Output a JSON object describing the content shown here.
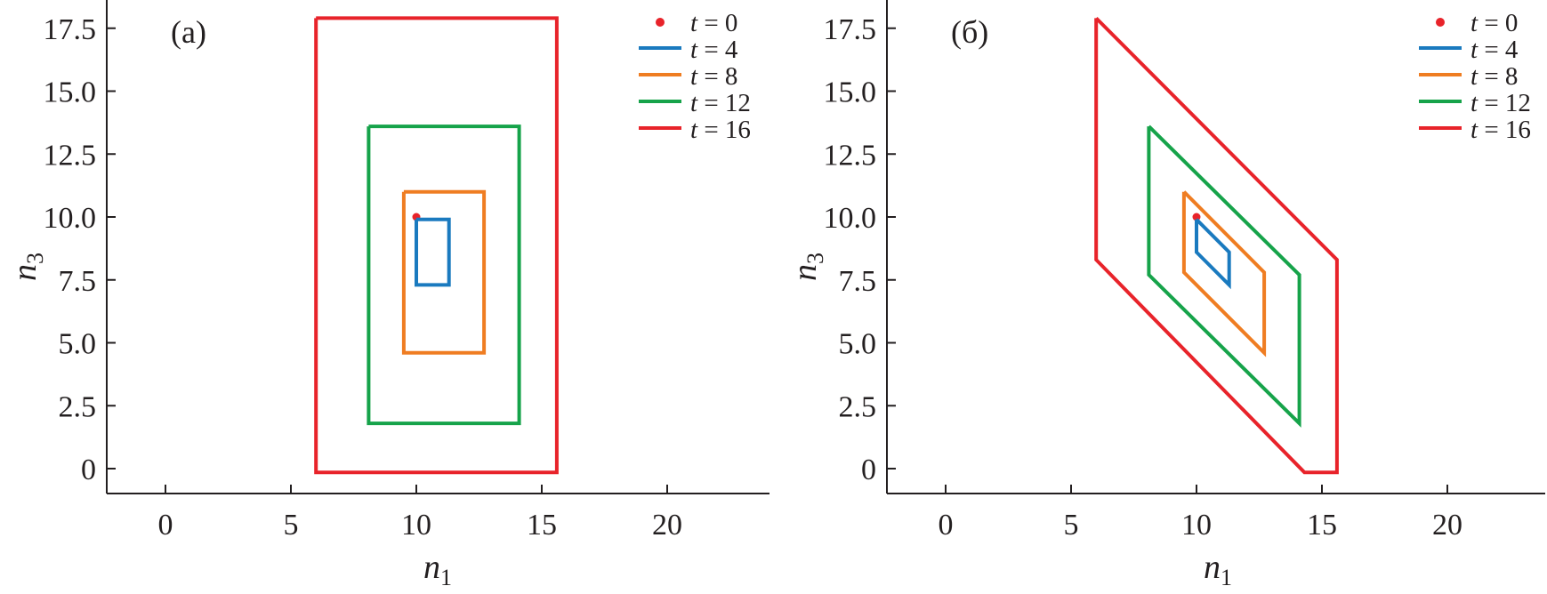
{
  "chart_data": [
    {
      "type": "line",
      "panel_label": "(a)",
      "xlabel": "n",
      "xlabel_sub": "1",
      "ylabel": "n",
      "ylabel_sub": "3",
      "xlim": [
        -2.3,
        24
      ],
      "ylim": [
        -0.9,
        18.6
      ],
      "xticks": [
        0,
        5,
        10,
        15,
        20
      ],
      "xtick_labels": [
        "0",
        "5",
        "10",
        "15",
        "20"
      ],
      "yticks": [
        0,
        2.5,
        5.0,
        7.5,
        10.0,
        12.5,
        15.0,
        17.5
      ],
      "ytick_labels": [
        "0",
        "2.5",
        "5.0",
        "7.5",
        "10.0",
        "12.5",
        "15.0",
        "17.5"
      ],
      "grid": false,
      "legend_position": "top-right",
      "series": [
        {
          "name": "t = 0",
          "legend_var": "t",
          "legend_value": "= 0",
          "kind": "point",
          "color": "#e8232a",
          "x": [
            10.0
          ],
          "y": [
            10.0
          ]
        },
        {
          "name": "t = 4",
          "legend_var": "t",
          "legend_value": "= 4",
          "kind": "line",
          "color": "#1a7abf",
          "x": [
            10.0,
            11.3,
            11.3,
            10.0,
            10.0
          ],
          "y": [
            9.9,
            9.9,
            7.3,
            7.3,
            9.9
          ]
        },
        {
          "name": "t = 8",
          "legend_var": "t",
          "legend_value": "= 8",
          "kind": "line",
          "color": "#ef7d22",
          "x": [
            9.5,
            12.7,
            12.7,
            9.5,
            9.5
          ],
          "y": [
            11.0,
            11.0,
            4.6,
            4.6,
            11.0
          ]
        },
        {
          "name": "t = 12",
          "legend_var": "t",
          "legend_value": "= 12",
          "kind": "line",
          "color": "#16a34a",
          "x": [
            8.1,
            14.1,
            14.1,
            8.1,
            8.1
          ],
          "y": [
            13.6,
            13.6,
            1.8,
            1.8,
            13.6
          ]
        },
        {
          "name": "t = 16",
          "legend_var": "t",
          "legend_value": "= 16",
          "kind": "line",
          "color": "#e8232a",
          "x": [
            6.0,
            15.6,
            15.6,
            6.0,
            6.0
          ],
          "y": [
            17.9,
            17.9,
            -0.15,
            -0.15,
            17.9
          ]
        }
      ]
    },
    {
      "type": "line",
      "panel_label": "(б)",
      "xlabel": "n",
      "xlabel_sub": "1",
      "ylabel": "n",
      "ylabel_sub": "3",
      "xlim": [
        -2.3,
        24
      ],
      "ylim": [
        -0.9,
        18.6
      ],
      "xticks": [
        0,
        5,
        10,
        15,
        20
      ],
      "xtick_labels": [
        "0",
        "5",
        "10",
        "15",
        "20"
      ],
      "yticks": [
        0,
        2.5,
        5.0,
        7.5,
        10.0,
        12.5,
        15.0,
        17.5
      ],
      "ytick_labels": [
        "0",
        "2.5",
        "5.0",
        "7.5",
        "10.0",
        "12.5",
        "15.0",
        "17.5"
      ],
      "grid": false,
      "legend_position": "top-right",
      "series": [
        {
          "name": "t = 0",
          "legend_var": "t",
          "legend_value": "= 0",
          "kind": "point",
          "color": "#e8232a",
          "x": [
            10.0
          ],
          "y": [
            10.0
          ]
        },
        {
          "name": "t = 4",
          "legend_var": "t",
          "legend_value": "= 4",
          "kind": "line",
          "color": "#1a7abf",
          "x": [
            10.0,
            11.3,
            11.3,
            10.0,
            10.0
          ],
          "y": [
            9.9,
            8.6,
            7.3,
            8.6,
            9.9
          ]
        },
        {
          "name": "t = 8",
          "legend_var": "t",
          "legend_value": "= 8",
          "kind": "line",
          "color": "#ef7d22",
          "x": [
            9.5,
            12.7,
            12.7,
            9.5,
            9.5
          ],
          "y": [
            11.0,
            7.8,
            4.6,
            7.8,
            11.0
          ]
        },
        {
          "name": "t = 12",
          "legend_var": "t",
          "legend_value": "= 12",
          "kind": "line",
          "color": "#16a34a",
          "x": [
            8.1,
            14.1,
            14.1,
            8.1,
            8.1
          ],
          "y": [
            13.6,
            7.7,
            1.8,
            7.7,
            13.6
          ]
        },
        {
          "name": "t = 16",
          "legend_var": "t",
          "legend_value": "= 16",
          "kind": "line",
          "color": "#e8232a",
          "x": [
            6.0,
            15.6,
            15.6,
            14.3,
            6.0,
            6.0
          ],
          "y": [
            17.9,
            8.3,
            -0.15,
            -0.15,
            8.3,
            17.9
          ]
        }
      ]
    }
  ]
}
